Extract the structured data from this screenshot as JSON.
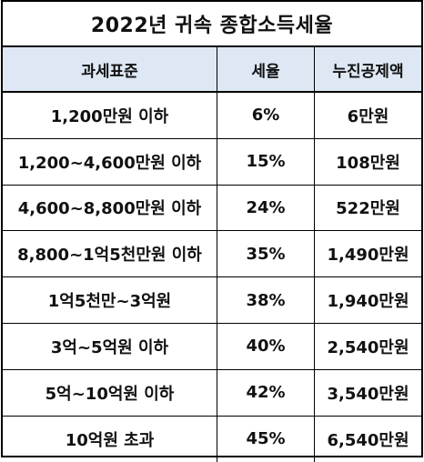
{
  "title": "2022년 귀속 종합소득세율",
  "headers": {
    "bracket": "과세표준",
    "rate": "세율",
    "deduction": "누진공제액"
  },
  "rows": [
    {
      "bracket": "1,200만원 이하",
      "rate": "6%",
      "deduction": "6만원"
    },
    {
      "bracket": "1,200~4,600만원 이하",
      "rate": "15%",
      "deduction": "108만원"
    },
    {
      "bracket": "4,600~8,800만원 이하",
      "rate": "24%",
      "deduction": "522만원"
    },
    {
      "bracket": "8,800~1억5천만원 이하",
      "rate": "35%",
      "deduction": "1,490만원"
    },
    {
      "bracket": "1억5천만~3억원",
      "rate": "38%",
      "deduction": "1,940만원"
    },
    {
      "bracket": "3억~5억원 이하",
      "rate": "40%",
      "deduction": "2,540만원"
    },
    {
      "bracket": "5억~10억원 이하",
      "rate": "42%",
      "deduction": "3,540만원"
    },
    {
      "bracket": "10억원 초과",
      "rate": "45%",
      "deduction": "6,540만원"
    }
  ],
  "colors": {
    "header_background": "#dde8f4",
    "border": "#000000"
  }
}
